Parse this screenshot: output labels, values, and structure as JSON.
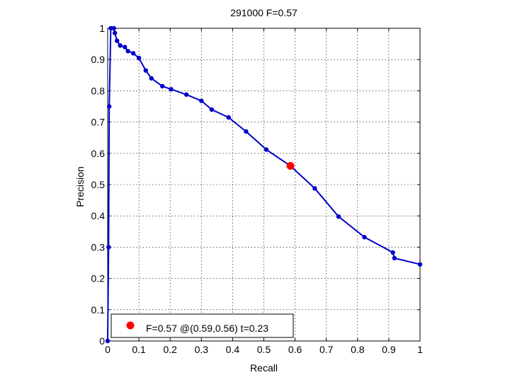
{
  "chart_data": {
    "type": "line",
    "title": "291000 F=0.57",
    "xlabel": "Recall",
    "ylabel": "Precision",
    "xlim": [
      0,
      1
    ],
    "ylim": [
      0,
      1
    ],
    "grid": true,
    "xticks": [
      "0",
      "0.1",
      "0.2",
      "0.3",
      "0.4",
      "0.5",
      "0.6",
      "0.7",
      "0.8",
      "0.9",
      "1"
    ],
    "yticks": [
      "0",
      "0.1",
      "0.2",
      "0.3",
      "0.4",
      "0.5",
      "0.6",
      "0.7",
      "0.8",
      "0.9",
      "1"
    ],
    "series": [
      {
        "color": "#0000cc",
        "marker": "circle",
        "x": [
          0.0,
          0.003,
          0.005,
          0.01,
          0.02,
          0.023,
          0.03,
          0.04,
          0.055,
          0.065,
          0.082,
          0.1,
          0.122,
          0.14,
          0.175,
          0.203,
          0.252,
          0.3,
          0.333,
          0.387,
          0.443,
          0.508,
          0.585,
          0.663,
          0.739,
          0.822,
          0.913,
          0.918,
          1.0
        ],
        "y": [
          0.0,
          0.3,
          0.75,
          1.0,
          1.0,
          0.985,
          0.96,
          0.945,
          0.94,
          0.927,
          0.92,
          0.905,
          0.865,
          0.84,
          0.815,
          0.805,
          0.788,
          0.768,
          0.74,
          0.715,
          0.67,
          0.612,
          0.56,
          0.488,
          0.398,
          0.332,
          0.283,
          0.265,
          0.245
        ]
      }
    ],
    "highlight": {
      "x": 0.585,
      "y": 0.56,
      "color": "#ff0000"
    },
    "legend": {
      "text": "F=0.57 @(0.59,0.56) t=0.23",
      "placement": "bottom-left",
      "marker_color": "#ff0000"
    }
  }
}
